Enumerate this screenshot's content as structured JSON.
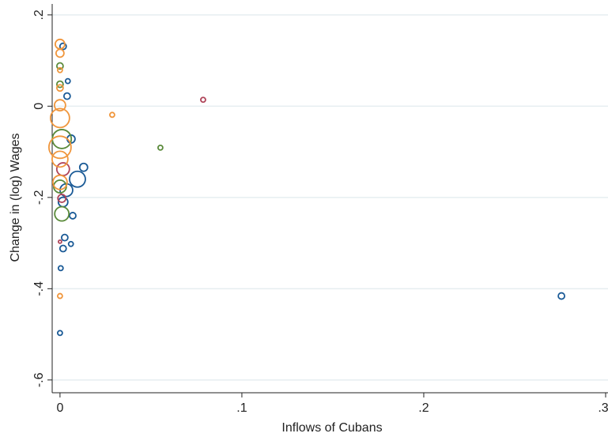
{
  "chart_data": {
    "type": "scatter",
    "x_label": "Inflows of Cubans",
    "y_label": "Change in (log) Wages",
    "xlim": [
      -0.0043,
      0.3013
    ],
    "ylim": [
      -0.628,
      0.224
    ],
    "xticks": [
      0,
      {
        "value": 0.1,
        "label": ".1"
      },
      {
        "value": 0.2,
        "label": ".2"
      },
      {
        "value": 0.3,
        "label": ".3"
      }
    ],
    "yticks": [
      {
        "value": 0.2,
        "label": ".2"
      },
      0,
      {
        "value": -0.2,
        "label": "-.2"
      },
      {
        "value": -0.4,
        "label": "-.4"
      },
      {
        "value": -0.6,
        "label": "-.6"
      }
    ],
    "grid": true,
    "series": [
      {
        "color": "#1a5a96",
        "x": [
          0.0017,
          0.0043,
          0.0039,
          0.0061,
          0.013,
          0.0096,
          0.007,
          0.0026,
          0.006,
          0.0017,
          0.0004,
          0,
          0.2757,
          0.0017,
          0.0035
        ],
        "values": [
          0.131,
          0.055,
          0.022,
          -0.072,
          -0.134,
          -0.16,
          -0.24,
          -0.288,
          -0.302,
          -0.312,
          -0.355,
          -0.497,
          -0.416,
          -0.21,
          -0.184
        ],
        "size": [
          4,
          3,
          4,
          5,
          5,
          10,
          4,
          4,
          3,
          4,
          3,
          3,
          4,
          6,
          8
        ]
      },
      {
        "color": "#b0455a",
        "x": [
          0.0787,
          0,
          0.001,
          0.0017
        ],
        "values": [
          0.014,
          -0.297,
          -0.202,
          -0.138
        ],
        "size": [
          3,
          2,
          5,
          8
        ]
      },
      {
        "color": "#5a8a3a",
        "x": [
          0.0552,
          0,
          0,
          0.001,
          0,
          0.001
        ],
        "values": [
          -0.091,
          0.088,
          0.048,
          -0.072,
          -0.176,
          -0.236
        ],
        "size": [
          3,
          4,
          4,
          12,
          8,
          9
        ]
      },
      {
        "color": "#f0963c",
        "x": [
          0,
          0,
          0,
          0,
          0,
          0,
          0,
          0,
          0.0287,
          0,
          0
        ],
        "values": [
          0.136,
          0.116,
          0.079,
          0.002,
          -0.026,
          -0.09,
          -0.116,
          -0.167,
          -0.019,
          -0.416,
          0.04
        ],
        "size": [
          6,
          5,
          3,
          7,
          12,
          14,
          10,
          9,
          3,
          3,
          4
        ]
      }
    ]
  }
}
